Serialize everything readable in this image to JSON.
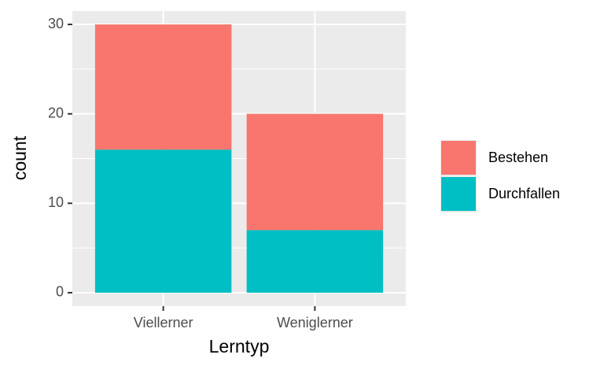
{
  "chart_data": {
    "type": "stacked_bar",
    "categories": [
      "Viellerner",
      "Weniglerner"
    ],
    "series": [
      {
        "name": "Bestehen",
        "color": "#F8766D",
        "values": [
          14,
          13
        ]
      },
      {
        "name": "Durchfallen",
        "color": "#00BFC4",
        "values": [
          16,
          7
        ]
      }
    ],
    "x_label": "Lerntyp",
    "y_label": "count",
    "ylim": [
      -1.5,
      31.5
    ],
    "yticks": [
      0,
      10,
      20,
      30
    ],
    "minor_yticks": [
      5,
      15,
      25
    ],
    "grid": true,
    "legend": "right"
  }
}
